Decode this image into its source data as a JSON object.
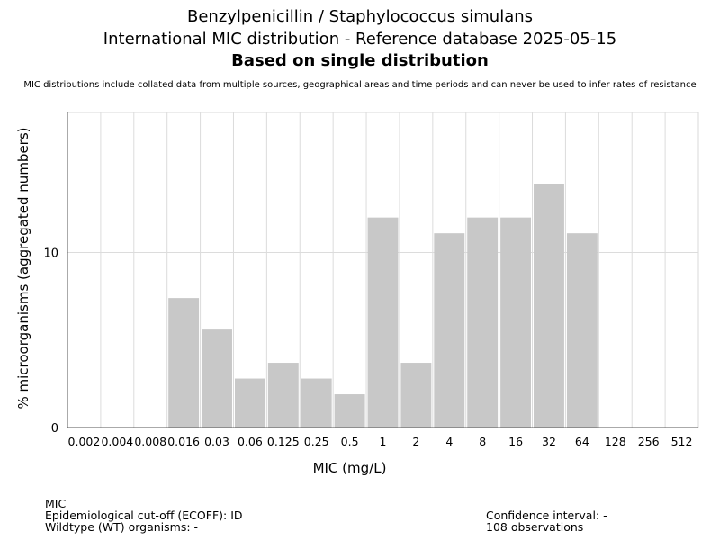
{
  "header": {
    "title_line1": "Benzylpenicillin / Staphylococcus simulans",
    "title_line2": "International MIC distribution - Reference database 2025-05-15",
    "title_line3": "Based on single distribution",
    "subtitle": "MIC distributions include collated data from multiple sources, geographical areas and time periods and can never be used to infer rates of resistance"
  },
  "chart_data": {
    "type": "bar",
    "xlabel": "MIC (mg/L)",
    "ylabel": "% microorganisms (aggregated numbers)",
    "categories": [
      "0.002",
      "0.004",
      "0.008",
      "0.016",
      "0.03",
      "0.06",
      "0.125",
      "0.25",
      "0.5",
      "1",
      "2",
      "4",
      "8",
      "16",
      "32",
      "64",
      "128",
      "256",
      "512"
    ],
    "values": [
      0,
      0,
      0,
      7.4,
      5.6,
      2.8,
      3.7,
      2.8,
      1.9,
      12.0,
      3.7,
      11.1,
      12.0,
      12.0,
      13.9,
      11.1,
      0,
      0,
      0
    ],
    "ylim": [
      0,
      18
    ],
    "yticks": [
      0,
      10
    ],
    "grid": true,
    "bar_color": "#c8c8c8"
  },
  "footer": {
    "left": [
      "MIC",
      "Epidemiological cut-off (ECOFF): ID",
      "Wildtype (WT) organisms:  -"
    ],
    "right": [
      "Confidence interval: -",
      "108 observations"
    ]
  }
}
